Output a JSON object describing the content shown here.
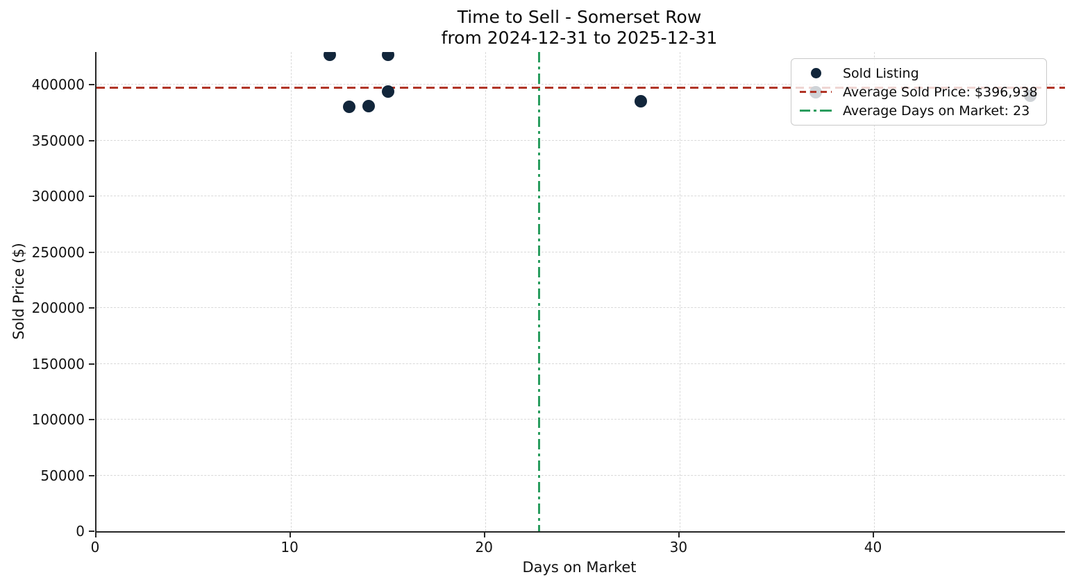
{
  "chart_data": {
    "type": "scatter",
    "title": "Time to Sell - Somerset Row",
    "subtitle": "from 2024-12-31 to 2025-12-31",
    "xlabel": "Days on Market",
    "ylabel": "Sold Price ($)",
    "xlim": [
      0,
      49.8
    ],
    "ylim": [
      0,
      429200
    ],
    "x_ticks": [
      0,
      10,
      20,
      30,
      40
    ],
    "x_tick_labels": [
      "0",
      "10",
      "20",
      "30",
      "40"
    ],
    "y_ticks": [
      0,
      50000,
      100000,
      150000,
      200000,
      250000,
      300000,
      350000,
      400000
    ],
    "y_tick_labels": [
      "0",
      "50000",
      "100000",
      "150000",
      "200000",
      "250000",
      "300000",
      "350000",
      "400000"
    ],
    "grid": true,
    "legend_position": "upper right",
    "series": [
      {
        "name": "Sold Listing",
        "points": [
          {
            "days": 12,
            "price": 427000
          },
          {
            "days": 15,
            "price": 426500
          },
          {
            "days": 15,
            "price": 393500
          },
          {
            "days": 13,
            "price": 380000
          },
          {
            "days": 14,
            "price": 380500
          },
          {
            "days": 28,
            "price": 385000
          },
          {
            "days": 37,
            "price": 393000
          },
          {
            "days": 48,
            "price": 390000
          }
        ]
      }
    ],
    "avg_sold_price": 396938,
    "avg_days_on_market": 22.75,
    "legend": {
      "entries": [
        {
          "label": "Sold Listing"
        },
        {
          "label": "Average Sold Price: $396,938"
        },
        {
          "label": "Average Days on Market: 23"
        }
      ]
    },
    "colors": {
      "scatter": "#12263b",
      "avg_price_line": "#b13527",
      "avg_days_line": "#2a9d5f",
      "grid": "#d9d9d9",
      "spine": "#262626"
    }
  }
}
